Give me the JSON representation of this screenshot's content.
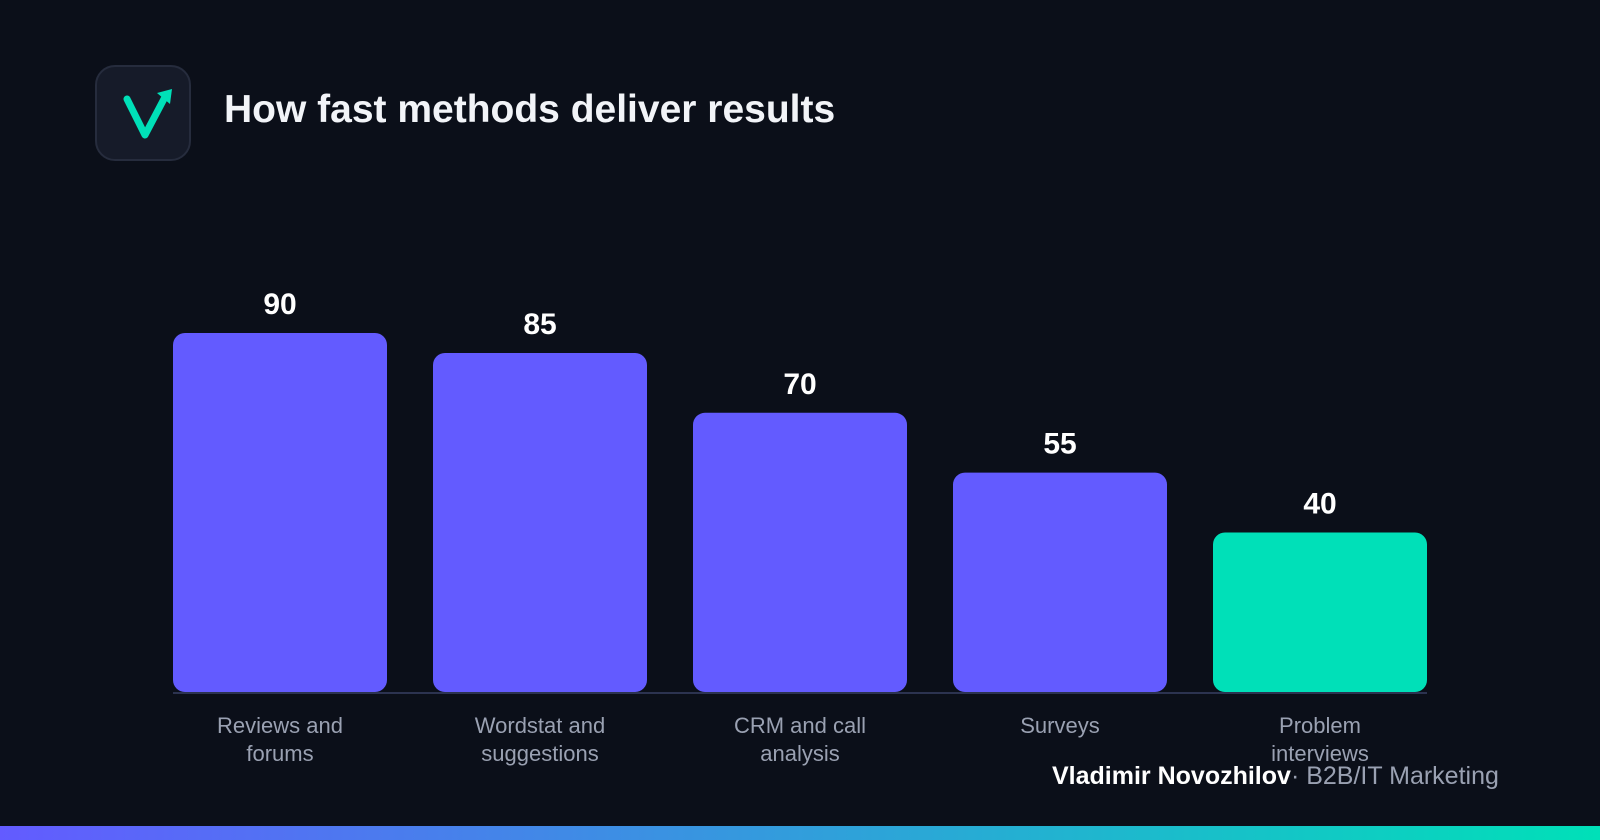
{
  "header": {
    "title": "How fast methods deliver results"
  },
  "logo": {
    "icon": "check-arrow-icon",
    "color": "#00e0b8"
  },
  "colors": {
    "background": "#0b0f19",
    "bar_primary": "#635bff",
    "bar_highlight": "#00e0b8",
    "value_label": "#ffffff",
    "axis_label": "#9aa1b2",
    "baseline": "#2c3350"
  },
  "chart_data": {
    "type": "bar",
    "title": "How fast methods deliver results",
    "categories": [
      [
        "Reviews and",
        "forums"
      ],
      [
        "Wordstat and",
        "suggestions"
      ],
      [
        "CRM and call",
        "analysis"
      ],
      [
        "Surveys"
      ],
      [
        "Problem",
        "interviews"
      ]
    ],
    "values": [
      90,
      85,
      70,
      55,
      40
    ],
    "highlight_index": 4,
    "ylim": [
      0,
      90
    ],
    "grid": false,
    "legend": "none"
  },
  "footer": {
    "author": "Vladimir Novozhilov",
    "separator": "·",
    "role": "B2B/IT Marketing"
  },
  "bottom_bar": {
    "gradient_start": "#635bff",
    "gradient_end": "#00e0b8"
  }
}
